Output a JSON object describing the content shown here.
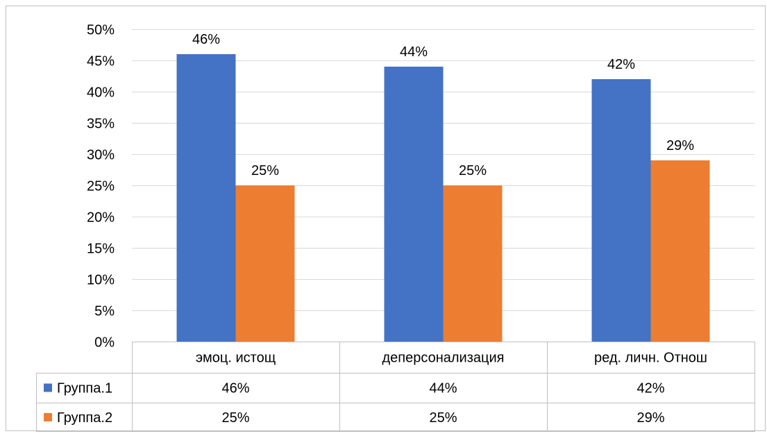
{
  "chart_data": {
    "type": "bar",
    "categories": [
      "эмоц. истощ",
      "деперсонализация",
      "ред. личн. Отнош"
    ],
    "series": [
      {
        "name": "Группа.1",
        "values": [
          46,
          44,
          42
        ],
        "labels": [
          "46%",
          "44%",
          "42%"
        ],
        "color": "#4472C4"
      },
      {
        "name": "Группа.2",
        "values": [
          25,
          25,
          29
        ],
        "labels": [
          "25%",
          "25%",
          "29%"
        ],
        "color": "#ED7D31"
      }
    ],
    "y_ticks": [
      "0%",
      "5%",
      "10%",
      "15%",
      "20%",
      "25%",
      "30%",
      "35%",
      "40%",
      "45%",
      "50%"
    ],
    "ylim": [
      0,
      50
    ],
    "y_unit": "%",
    "grid": true,
    "legend": "data-table"
  }
}
